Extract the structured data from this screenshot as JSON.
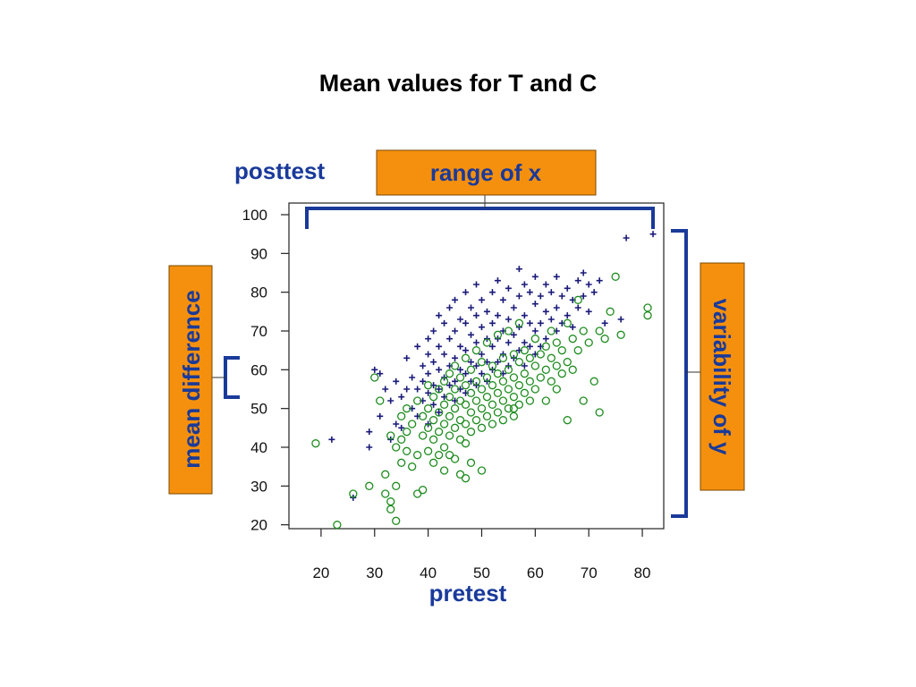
{
  "slide": {
    "title": "Mean values for T and C"
  },
  "colors": {
    "treatment": "#1a1a7a",
    "control": "#1e8c1e",
    "axis_title": "#1a3a9a",
    "bracket": "#1a3a9a",
    "callout_fill": "#f5900e",
    "callout_text": "#1a3a9a"
  },
  "annotations": {
    "range_of_x": "range of x",
    "variability_of_y": "variability of y",
    "mean_difference": "mean difference"
  },
  "chart_data": {
    "type": "scatter",
    "title": "",
    "xlabel": "pretest",
    "ylabel": "posttest",
    "xlim": [
      14,
      84
    ],
    "ylim": [
      19,
      103
    ],
    "xticks": [
      20,
      30,
      40,
      50,
      60,
      70,
      80
    ],
    "yticks": [
      20,
      30,
      40,
      50,
      60,
      70,
      80,
      90,
      100
    ],
    "grid": false,
    "legend": "none",
    "series": [
      {
        "marker": "plus",
        "color": "#1a1a7a",
        "points": [
          [
            22,
            42
          ],
          [
            26,
            27
          ],
          [
            29,
            44
          ],
          [
            29,
            40
          ],
          [
            30,
            60
          ],
          [
            31,
            59
          ],
          [
            31,
            48
          ],
          [
            32,
            55
          ],
          [
            33,
            52
          ],
          [
            33,
            42
          ],
          [
            34,
            57
          ],
          [
            34,
            46
          ],
          [
            35,
            53
          ],
          [
            35,
            45
          ],
          [
            36,
            63
          ],
          [
            36,
            55
          ],
          [
            37,
            58
          ],
          [
            37,
            50
          ],
          [
            38,
            66
          ],
          [
            38,
            55
          ],
          [
            38,
            48
          ],
          [
            39,
            61
          ],
          [
            39,
            57
          ],
          [
            39,
            52
          ],
          [
            40,
            68
          ],
          [
            40,
            64
          ],
          [
            40,
            59
          ],
          [
            40,
            54
          ],
          [
            40,
            46
          ],
          [
            41,
            70
          ],
          [
            41,
            62
          ],
          [
            41,
            56
          ],
          [
            41,
            51
          ],
          [
            42,
            74
          ],
          [
            42,
            66
          ],
          [
            42,
            60
          ],
          [
            42,
            55
          ],
          [
            42,
            49
          ],
          [
            43,
            72
          ],
          [
            43,
            64
          ],
          [
            43,
            58
          ],
          [
            43,
            53
          ],
          [
            44,
            76
          ],
          [
            44,
            68
          ],
          [
            44,
            61
          ],
          [
            44,
            56
          ],
          [
            45,
            78
          ],
          [
            45,
            70
          ],
          [
            45,
            63
          ],
          [
            45,
            57
          ],
          [
            45,
            52
          ],
          [
            46,
            73
          ],
          [
            46,
            66
          ],
          [
            46,
            60
          ],
          [
            46,
            55
          ],
          [
            47,
            80
          ],
          [
            47,
            72
          ],
          [
            47,
            65
          ],
          [
            47,
            59
          ],
          [
            47,
            54
          ],
          [
            48,
            76
          ],
          [
            48,
            69
          ],
          [
            48,
            62
          ],
          [
            48,
            57
          ],
          [
            49,
            82
          ],
          [
            49,
            74
          ],
          [
            49,
            67
          ],
          [
            49,
            61
          ],
          [
            49,
            56
          ],
          [
            50,
            78
          ],
          [
            50,
            71
          ],
          [
            50,
            64
          ],
          [
            50,
            59
          ],
          [
            51,
            75
          ],
          [
            51,
            68
          ],
          [
            51,
            62
          ],
          [
            51,
            57
          ],
          [
            52,
            80
          ],
          [
            52,
            72
          ],
          [
            52,
            66
          ],
          [
            52,
            60
          ],
          [
            53,
            83
          ],
          [
            53,
            74
          ],
          [
            53,
            68
          ],
          [
            53,
            62
          ],
          [
            54,
            78
          ],
          [
            54,
            70
          ],
          [
            54,
            64
          ],
          [
            54,
            59
          ],
          [
            55,
            81
          ],
          [
            55,
            73
          ],
          [
            55,
            67
          ],
          [
            55,
            61
          ],
          [
            56,
            76
          ],
          [
            56,
            69
          ],
          [
            56,
            63
          ],
          [
            57,
            86
          ],
          [
            57,
            79
          ],
          [
            57,
            71
          ],
          [
            57,
            65
          ],
          [
            58,
            82
          ],
          [
            58,
            74
          ],
          [
            58,
            67
          ],
          [
            58,
            61
          ],
          [
            59,
            80
          ],
          [
            59,
            72
          ],
          [
            59,
            66
          ],
          [
            60,
            84
          ],
          [
            60,
            77
          ],
          [
            60,
            70
          ],
          [
            60,
            64
          ],
          [
            61,
            79
          ],
          [
            61,
            72
          ],
          [
            61,
            66
          ],
          [
            62,
            82
          ],
          [
            62,
            75
          ],
          [
            62,
            68
          ],
          [
            63,
            80
          ],
          [
            63,
            73
          ],
          [
            64,
            84
          ],
          [
            64,
            76
          ],
          [
            64,
            70
          ],
          [
            65,
            79
          ],
          [
            65,
            72
          ],
          [
            66,
            81
          ],
          [
            66,
            74
          ],
          [
            67,
            78
          ],
          [
            67,
            71
          ],
          [
            68,
            83
          ],
          [
            68,
            76
          ],
          [
            69,
            85
          ],
          [
            69,
            79
          ],
          [
            70,
            82
          ],
          [
            70,
            75
          ],
          [
            71,
            80
          ],
          [
            72,
            83
          ],
          [
            73,
            72
          ],
          [
            76,
            73
          ],
          [
            77,
            94
          ],
          [
            82,
            95
          ]
        ]
      },
      {
        "marker": "circle",
        "color": "#1e8c1e",
        "points": [
          [
            19,
            41
          ],
          [
            23,
            20
          ],
          [
            26,
            28
          ],
          [
            29,
            30
          ],
          [
            30,
            58
          ],
          [
            31,
            52
          ],
          [
            32,
            33
          ],
          [
            32,
            28
          ],
          [
            33,
            26
          ],
          [
            33,
            24
          ],
          [
            33,
            43
          ],
          [
            34,
            21
          ],
          [
            34,
            30
          ],
          [
            34,
            40
          ],
          [
            35,
            42
          ],
          [
            35,
            36
          ],
          [
            35,
            48
          ],
          [
            36,
            39
          ],
          [
            36,
            44
          ],
          [
            36,
            50
          ],
          [
            37,
            35
          ],
          [
            37,
            46
          ],
          [
            38,
            28
          ],
          [
            38,
            38
          ],
          [
            38,
            52
          ],
          [
            39,
            29
          ],
          [
            39,
            43
          ],
          [
            39,
            48
          ],
          [
            40,
            39
          ],
          [
            40,
            45
          ],
          [
            40,
            50
          ],
          [
            40,
            56
          ],
          [
            41,
            36
          ],
          [
            41,
            42
          ],
          [
            41,
            47
          ],
          [
            41,
            53
          ],
          [
            42,
            38
          ],
          [
            42,
            44
          ],
          [
            42,
            49
          ],
          [
            42,
            55
          ],
          [
            43,
            34
          ],
          [
            43,
            40
          ],
          [
            43,
            46
          ],
          [
            43,
            51
          ],
          [
            43,
            57
          ],
          [
            44,
            38
          ],
          [
            44,
            43
          ],
          [
            44,
            48
          ],
          [
            44,
            53
          ],
          [
            44,
            59
          ],
          [
            45,
            37
          ],
          [
            45,
            45
          ],
          [
            45,
            50
          ],
          [
            45,
            55
          ],
          [
            45,
            61
          ],
          [
            46,
            33
          ],
          [
            46,
            42
          ],
          [
            46,
            47
          ],
          [
            46,
            52
          ],
          [
            46,
            58
          ],
          [
            47,
            32
          ],
          [
            47,
            41
          ],
          [
            47,
            46
          ],
          [
            47,
            51
          ],
          [
            47,
            56
          ],
          [
            47,
            63
          ],
          [
            48,
            36
          ],
          [
            48,
            44
          ],
          [
            48,
            49
          ],
          [
            48,
            54
          ],
          [
            48,
            60
          ],
          [
            49,
            47
          ],
          [
            49,
            52
          ],
          [
            49,
            57
          ],
          [
            49,
            65
          ],
          [
            50,
            34
          ],
          [
            50,
            45
          ],
          [
            50,
            50
          ],
          [
            50,
            55
          ],
          [
            50,
            62
          ],
          [
            51,
            48
          ],
          [
            51,
            53
          ],
          [
            51,
            58
          ],
          [
            51,
            67
          ],
          [
            52,
            46
          ],
          [
            52,
            51
          ],
          [
            52,
            56
          ],
          [
            52,
            61
          ],
          [
            53,
            49
          ],
          [
            53,
            54
          ],
          [
            53,
            59
          ],
          [
            53,
            69
          ],
          [
            54,
            47
          ],
          [
            54,
            52
          ],
          [
            54,
            57
          ],
          [
            54,
            63
          ],
          [
            55,
            50
          ],
          [
            55,
            55
          ],
          [
            55,
            60
          ],
          [
            55,
            70
          ],
          [
            56,
            48
          ],
          [
            56,
            53
          ],
          [
            56,
            58
          ],
          [
            56,
            64
          ],
          [
            57,
            51
          ],
          [
            57,
            56
          ],
          [
            57,
            62
          ],
          [
            57,
            72
          ],
          [
            58,
            54
          ],
          [
            58,
            59
          ],
          [
            58,
            65
          ],
          [
            59,
            52
          ],
          [
            59,
            57
          ],
          [
            59,
            63
          ],
          [
            60,
            55
          ],
          [
            60,
            61
          ],
          [
            60,
            68
          ],
          [
            61,
            58
          ],
          [
            61,
            64
          ],
          [
            62,
            52
          ],
          [
            62,
            60
          ],
          [
            62,
            66
          ],
          [
            63,
            57
          ],
          [
            63,
            63
          ],
          [
            63,
            70
          ],
          [
            64,
            55
          ],
          [
            64,
            61
          ],
          [
            64,
            67
          ],
          [
            65,
            59
          ],
          [
            65,
            65
          ],
          [
            66,
            47
          ],
          [
            66,
            62
          ],
          [
            66,
            72
          ],
          [
            67,
            60
          ],
          [
            67,
            68
          ],
          [
            68,
            65
          ],
          [
            68,
            78
          ],
          [
            69,
            52
          ],
          [
            69,
            70
          ],
          [
            70,
            67
          ],
          [
            71,
            57
          ],
          [
            72,
            49
          ],
          [
            72,
            70
          ],
          [
            73,
            68
          ],
          [
            74,
            75
          ],
          [
            75,
            84
          ],
          [
            76,
            69
          ],
          [
            81,
            76
          ],
          [
            81,
            74
          ],
          [
            56,
            50
          ]
        ]
      }
    ]
  }
}
